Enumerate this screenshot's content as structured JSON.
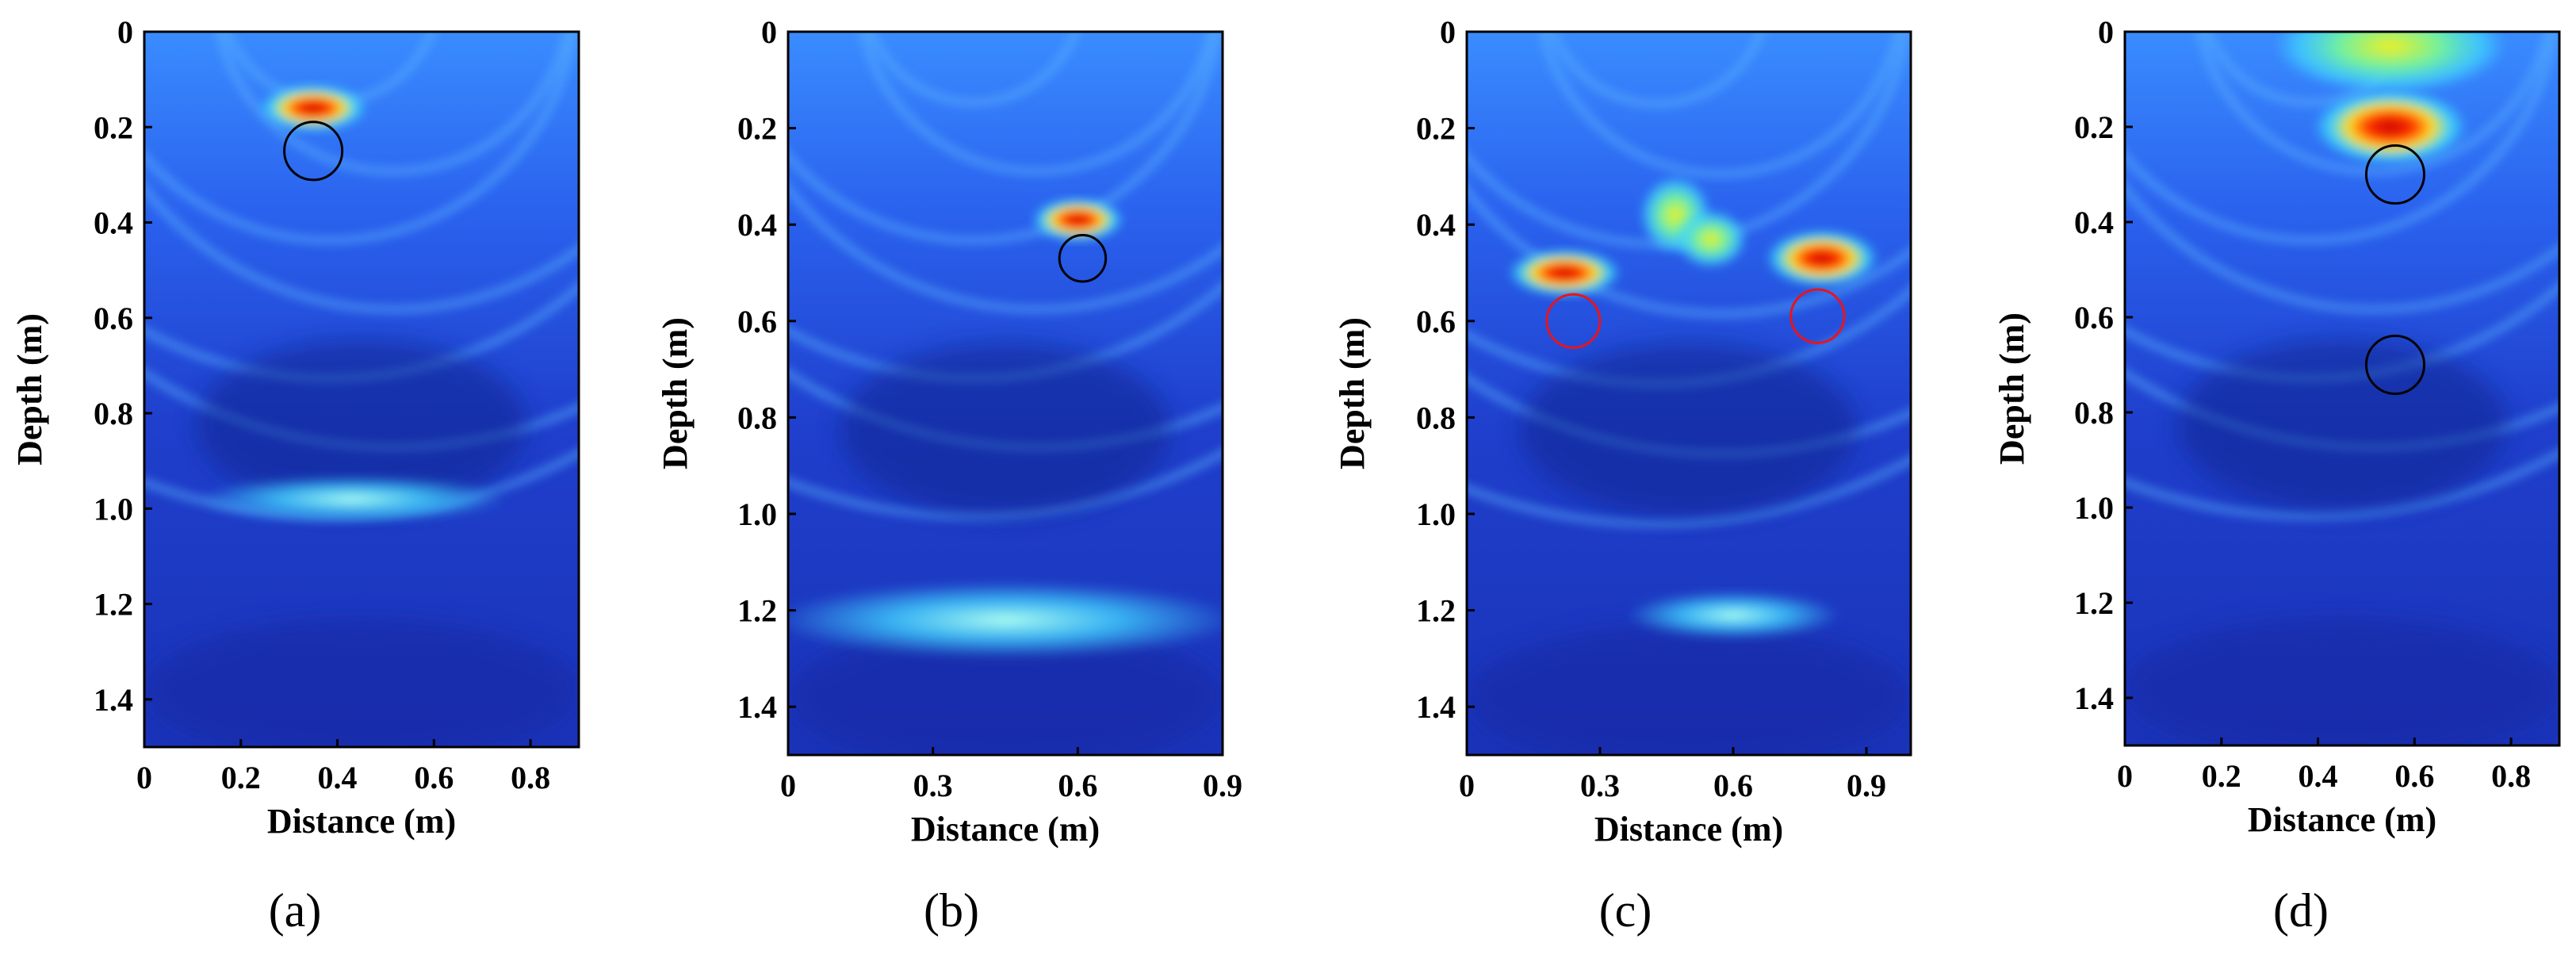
{
  "chart_data": [
    {
      "type": "heatmap",
      "panel_label": "(a)",
      "xlabel": "Distance (m)",
      "ylabel": "Depth (m)",
      "xlim": [
        0,
        0.9
      ],
      "ylim": [
        0,
        1.5
      ],
      "x_ticks": [
        "0",
        "0.2",
        "0.4",
        "0.6",
        "0.8"
      ],
      "x_tick_values": [
        0,
        0.2,
        0.4,
        0.6,
        0.8
      ],
      "y_ticks": [
        "0",
        "0.2",
        "0.4",
        "0.6",
        "0.8",
        "1.0",
        "1.2",
        "1.4"
      ],
      "y_tick_values": [
        0,
        0.2,
        0.4,
        0.6,
        0.8,
        1.0,
        1.2,
        1.4
      ],
      "hotspots": [
        {
          "x": 0.35,
          "depth": 0.16,
          "intensity": 1.0,
          "rx": 0.07,
          "rdepth": 0.025
        },
        {
          "x": 0.43,
          "depth": 0.98,
          "intensity": 0.45,
          "rx": 0.2,
          "rdepth": 0.025
        }
      ],
      "markers": [
        {
          "x": 0.35,
          "depth": 0.25,
          "radius": 0.1,
          "color": "#000000"
        }
      ]
    },
    {
      "type": "heatmap",
      "panel_label": "(b)",
      "xlabel": "Distance (m)",
      "ylabel": "Depth (m)",
      "xlim": [
        0,
        0.9
      ],
      "ylim": [
        0,
        1.5
      ],
      "x_ticks": [
        "0",
        "0.3",
        "0.6",
        "0.9"
      ],
      "x_tick_values": [
        0,
        0.3,
        0.6,
        0.9
      ],
      "y_ticks": [
        "0",
        "0.2",
        "0.4",
        "0.6",
        "0.8",
        "1.0",
        "1.2",
        "1.4"
      ],
      "y_tick_values": [
        0,
        0.2,
        0.4,
        0.6,
        0.8,
        1.0,
        1.2,
        1.4
      ],
      "hotspots": [
        {
          "x": 0.6,
          "depth": 0.39,
          "intensity": 1.0,
          "rx": 0.06,
          "rdepth": 0.022
        },
        {
          "x": 0.45,
          "depth": 1.22,
          "intensity": 0.35,
          "rx": 0.3,
          "rdepth": 0.04
        }
      ],
      "markers": [
        {
          "x": 0.61,
          "depth": 0.47,
          "radius": 0.08,
          "color": "#000000"
        }
      ]
    },
    {
      "type": "heatmap",
      "panel_label": "(c)",
      "xlabel": "Distance (m)",
      "ylabel": "Depth (m)",
      "xlim": [
        0,
        1.0
      ],
      "ylim": [
        0,
        1.5
      ],
      "x_ticks": [
        "0",
        "0.3",
        "0.6",
        "0.9"
      ],
      "x_tick_values": [
        0,
        0.3,
        0.6,
        0.9
      ],
      "y_ticks": [
        "0",
        "0.2",
        "0.4",
        "0.6",
        "0.8",
        "1.0",
        "1.2",
        "1.4"
      ],
      "y_tick_values": [
        0,
        0.2,
        0.4,
        0.6,
        0.8,
        1.0,
        1.2,
        1.4
      ],
      "hotspots": [
        {
          "x": 0.22,
          "depth": 0.5,
          "intensity": 0.95,
          "rx": 0.08,
          "rdepth": 0.025
        },
        {
          "x": 0.8,
          "depth": 0.47,
          "intensity": 1.0,
          "rx": 0.08,
          "rdepth": 0.03
        },
        {
          "x": 0.47,
          "depth": 0.38,
          "intensity": 0.85,
          "rx": 0.05,
          "rdepth": 0.04
        },
        {
          "x": 0.55,
          "depth": 0.43,
          "intensity": 0.75,
          "rx": 0.05,
          "rdepth": 0.03
        },
        {
          "x": 0.6,
          "depth": 1.21,
          "intensity": 0.55,
          "rx": 0.15,
          "rdepth": 0.025
        }
      ],
      "markers": [
        {
          "x": 0.24,
          "depth": 0.6,
          "radius": 0.1,
          "color": "#e8141c"
        },
        {
          "x": 0.79,
          "depth": 0.59,
          "radius": 0.1,
          "color": "#e8141c"
        }
      ]
    },
    {
      "type": "heatmap",
      "panel_label": "(d)",
      "xlabel": "Distance (m)",
      "ylabel": "Depth (m)",
      "xlim": [
        0,
        0.9
      ],
      "ylim": [
        0,
        1.5
      ],
      "x_ticks": [
        "0",
        "0.2",
        "0.4",
        "0.6",
        "0.8"
      ],
      "x_tick_values": [
        0,
        0.2,
        0.4,
        0.6,
        0.8
      ],
      "y_ticks": [
        "0",
        "0.2",
        "0.4",
        "0.6",
        "0.8",
        "1.0",
        "1.2",
        "1.4"
      ],
      "y_tick_values": [
        0,
        0.2,
        0.4,
        0.6,
        0.8,
        1.0,
        1.2,
        1.4
      ],
      "hotspots": [
        {
          "x": 0.55,
          "depth": 0.2,
          "intensity": 1.0,
          "rx": 0.1,
          "rdepth": 0.04
        },
        {
          "x": 0.55,
          "depth": 0.03,
          "intensity": 0.6,
          "rx": 0.15,
          "rdepth": 0.05
        }
      ],
      "markers": [
        {
          "x": 0.56,
          "depth": 0.3,
          "radius": 0.1,
          "color": "#000000"
        },
        {
          "x": 0.56,
          "depth": 0.7,
          "radius": 0.1,
          "color": "#000000"
        }
      ]
    }
  ],
  "colors": {
    "background_dark": "#1a2fb8",
    "background_mid": "#2458e6",
    "reflection_cyan": "#4fd8ff",
    "reflection_yellow": "#f0f020",
    "reflection_red": "#d81010"
  }
}
